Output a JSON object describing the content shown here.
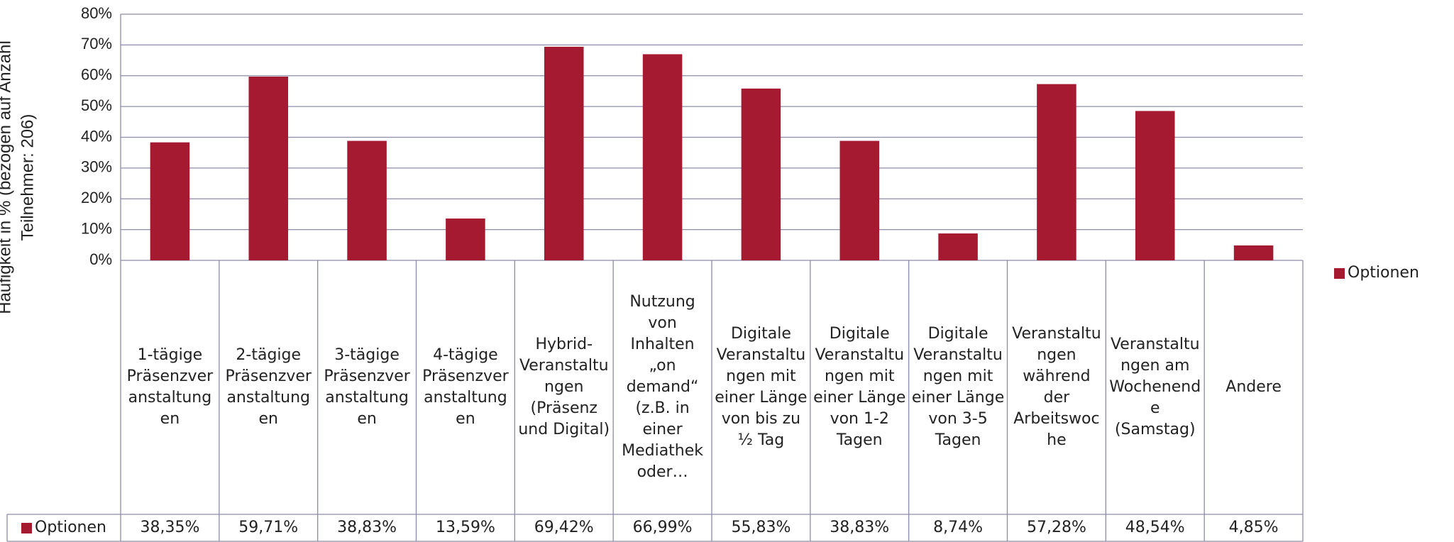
{
  "chart_data": {
    "type": "bar",
    "ylabel": [
      "Häufigkeit in % (bezogen auf Anzahl",
      "Teilnehmer: 206)"
    ],
    "categories": [
      "1-tägige Präsenzveranstaltungen",
      "2-tägige Präsenzveranstaltungen",
      "3-tägige Präsenzveranstaltungen",
      "4-tägige Präsenzveranstaltungen",
      "Hybrid-Veranstaltungen (Präsenz und Digital)",
      "Nutzung von Inhalten „on demand“ (z.B. in einer Mediathek oder…",
      "Digitale Veranstaltungen mit einer Länge von bis zu ½ Tag",
      "Digitale Veranstaltungen mit einer Länge von 1-2 Tagen",
      "Digitale Veranstaltungen mit einer Länge von 3-5 Tagen",
      "Veranstaltungen während der Arbeitswoche",
      "Veranstaltungen am Wochenende (Samstag)",
      "Andere"
    ],
    "series": [
      {
        "name": "Optionen",
        "color": "#a51931",
        "values": [
          38.35,
          59.71,
          38.83,
          13.59,
          69.42,
          66.99,
          55.83,
          38.83,
          8.74,
          57.28,
          48.54,
          4.85
        ],
        "value_labels": [
          "38,35%",
          "59,71%",
          "38,83%",
          "13,59%",
          "69,42%",
          "66,99%",
          "55,83%",
          "38,83%",
          "8,74%",
          "57,28%",
          "48,54%",
          "4,85%"
        ]
      }
    ],
    "ylim": [
      0,
      80
    ],
    "yticks": [
      {
        "value": 0,
        "label": "0%"
      },
      {
        "value": 10,
        "label": "10%"
      },
      {
        "value": 20,
        "label": "20%"
      },
      {
        "value": 30,
        "label": "30%"
      },
      {
        "value": 40,
        "label": "40%"
      },
      {
        "value": 50,
        "label": "50%"
      },
      {
        "value": 60,
        "label": "60%"
      },
      {
        "value": 70,
        "label": "70%"
      },
      {
        "value": 80,
        "label": "80%"
      }
    ],
    "grid": true,
    "legend": "right"
  }
}
